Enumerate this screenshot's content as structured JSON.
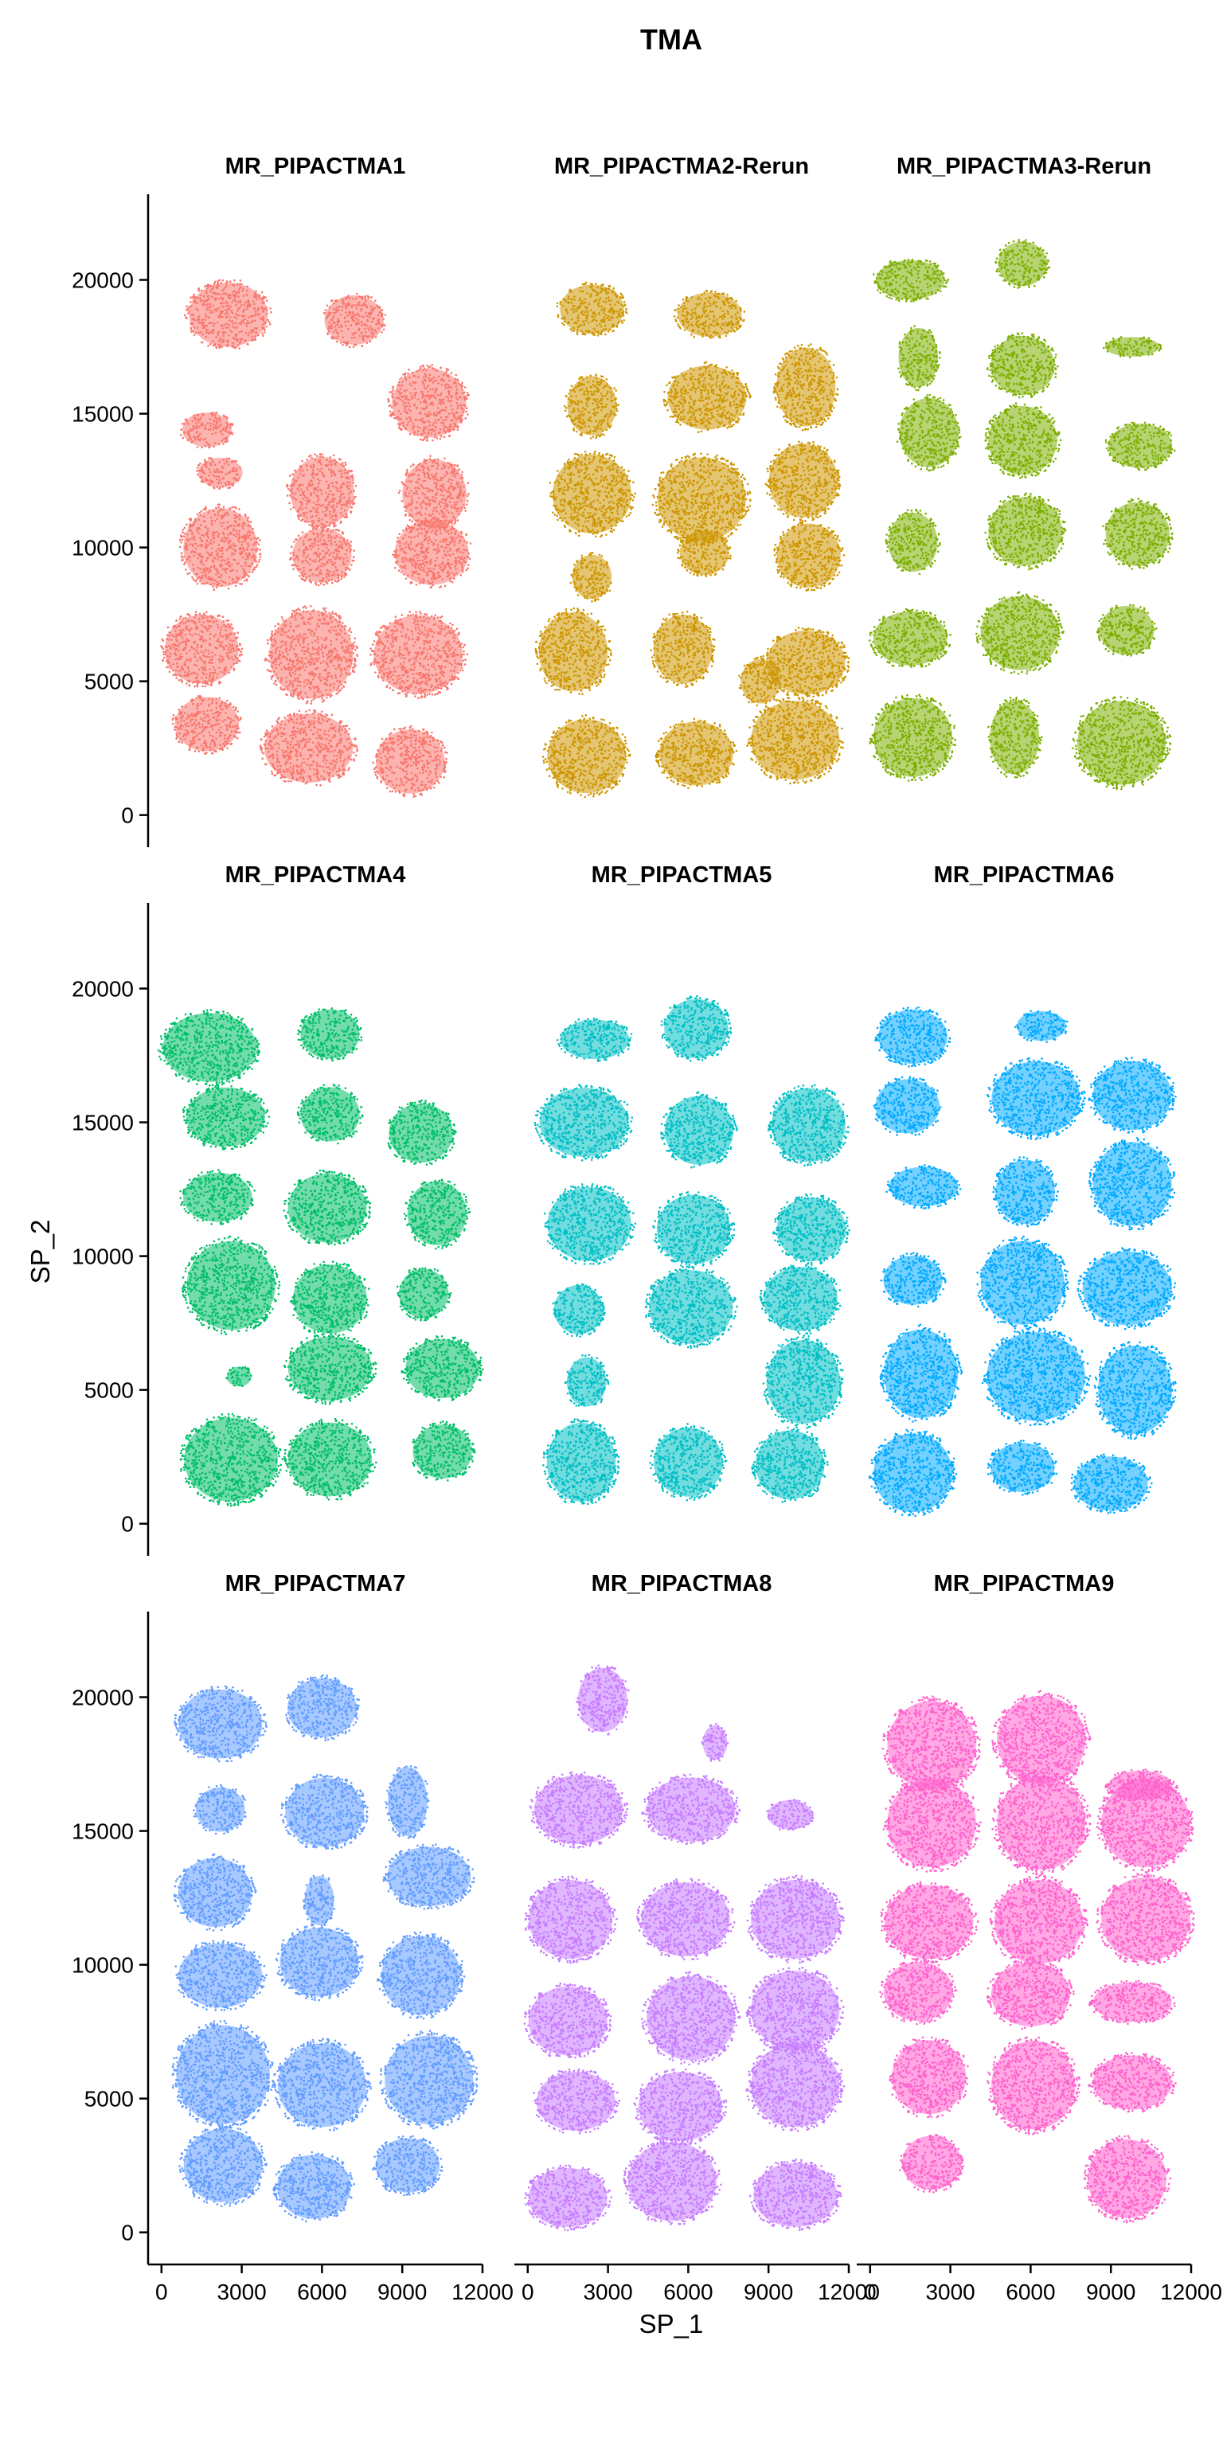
{
  "chart_data": {
    "type": "scatter",
    "title": "TMA",
    "xlabel": "SP_1",
    "ylabel": "SP_2",
    "xlim": [
      -500,
      12000
    ],
    "ylim": [
      -1200,
      23200
    ],
    "x_ticks": [
      0,
      3000,
      6000,
      9000,
      12000
    ],
    "y_ticks": [
      0,
      5000,
      10000,
      15000,
      20000
    ],
    "x_tick_labels": [
      "0",
      "3000",
      "6000",
      "9000",
      "12000"
    ],
    "y_tick_labels": [
      "0",
      "5000",
      "10000",
      "15000",
      "20000"
    ],
    "grid": false,
    "legend": "none",
    "panels": [
      {
        "name": "MR_PIPACTMA1",
        "color": "#F8766D",
        "cores": [
          [
            2500,
            18700,
            1600,
            1300
          ],
          [
            7200,
            18500,
            1200,
            1000
          ],
          [
            10000,
            15400,
            1500,
            1400
          ],
          [
            1700,
            14400,
            1000,
            700
          ],
          [
            2200,
            12800,
            900,
            600
          ],
          [
            6000,
            12100,
            1300,
            1400
          ],
          [
            10200,
            12000,
            1300,
            1400
          ],
          [
            2200,
            10000,
            1500,
            1600
          ],
          [
            6000,
            9700,
            1200,
            1100
          ],
          [
            10100,
            9800,
            1500,
            1300
          ],
          [
            1500,
            6200,
            1500,
            1400
          ],
          [
            5600,
            6000,
            1700,
            1800
          ],
          [
            9600,
            6000,
            1800,
            1600
          ],
          [
            1700,
            3400,
            1300,
            1100
          ],
          [
            5500,
            2500,
            1800,
            1400
          ],
          [
            9300,
            2000,
            1400,
            1300
          ]
        ]
      },
      {
        "name": "MR_PIPACTMA2-Rerun",
        "color": "#CD9600",
        "cores": [
          [
            2400,
            18900,
            1300,
            1000
          ],
          [
            6800,
            18700,
            1300,
            900
          ],
          [
            2400,
            15300,
            1000,
            1200
          ],
          [
            6700,
            15600,
            1600,
            1300
          ],
          [
            10400,
            16000,
            1200,
            1600
          ],
          [
            2400,
            12000,
            1600,
            1600
          ],
          [
            6500,
            11800,
            1800,
            1700
          ],
          [
            10300,
            12500,
            1400,
            1500
          ],
          [
            2400,
            8900,
            800,
            900
          ],
          [
            6600,
            9800,
            1000,
            900
          ],
          [
            10500,
            9700,
            1300,
            1300
          ],
          [
            1700,
            6100,
            1400,
            1600
          ],
          [
            5800,
            6200,
            1200,
            1400
          ],
          [
            8700,
            5000,
            800,
            900
          ],
          [
            10400,
            5700,
            1600,
            1300
          ],
          [
            2200,
            2200,
            1600,
            1500
          ],
          [
            6300,
            2300,
            1500,
            1300
          ],
          [
            10000,
            2800,
            1800,
            1600
          ]
        ]
      },
      {
        "name": "MR_PIPACTMA3-Rerun",
        "color": "#7CAE00",
        "cores": [
          [
            1500,
            20000,
            1400,
            800
          ],
          [
            5700,
            20600,
            1000,
            900
          ],
          [
            1800,
            17100,
            800,
            1200
          ],
          [
            5700,
            16800,
            1300,
            1200
          ],
          [
            9800,
            17500,
            1100,
            400
          ],
          [
            2200,
            14300,
            1200,
            1400
          ],
          [
            5700,
            14000,
            1400,
            1400
          ],
          [
            10100,
            13800,
            1300,
            900
          ],
          [
            1600,
            10200,
            1000,
            1200
          ],
          [
            5800,
            10600,
            1500,
            1400
          ],
          [
            10000,
            10500,
            1300,
            1300
          ],
          [
            1500,
            6600,
            1500,
            1100
          ],
          [
            5600,
            6800,
            1600,
            1500
          ],
          [
            9600,
            6900,
            1100,
            1000
          ],
          [
            1600,
            2900,
            1600,
            1600
          ],
          [
            5400,
            2900,
            1000,
            1500
          ],
          [
            9400,
            2700,
            1800,
            1700
          ]
        ]
      },
      {
        "name": "MR_PIPACTMA4",
        "color": "#00BE67",
        "cores": [
          [
            1800,
            17800,
            1900,
            1400
          ],
          [
            6300,
            18300,
            1200,
            1000
          ],
          [
            2400,
            15200,
            1600,
            1200
          ],
          [
            6300,
            15300,
            1200,
            1100
          ],
          [
            9700,
            14600,
            1300,
            1200
          ],
          [
            2100,
            12200,
            1400,
            1000
          ],
          [
            6200,
            11800,
            1600,
            1400
          ],
          [
            10300,
            11600,
            1200,
            1300
          ],
          [
            2600,
            8900,
            1800,
            1800
          ],
          [
            6300,
            8400,
            1500,
            1400
          ],
          [
            9800,
            8600,
            1000,
            1000
          ],
          [
            2900,
            5500,
            500,
            400
          ],
          [
            6300,
            5800,
            1700,
            1300
          ],
          [
            10500,
            5800,
            1500,
            1200
          ],
          [
            2600,
            2400,
            1900,
            1700
          ],
          [
            6300,
            2400,
            1700,
            1500
          ],
          [
            10500,
            2700,
            1200,
            1100
          ]
        ]
      },
      {
        "name": "MR_PIPACTMA5",
        "color": "#00BFC4",
        "cores": [
          [
            2500,
            18100,
            1400,
            800
          ],
          [
            6300,
            18500,
            1300,
            1200
          ],
          [
            2100,
            15000,
            1800,
            1400
          ],
          [
            6400,
            14700,
            1400,
            1400
          ],
          [
            10500,
            14900,
            1500,
            1500
          ],
          [
            2300,
            11200,
            1700,
            1500
          ],
          [
            6200,
            11000,
            1500,
            1400
          ],
          [
            10600,
            11000,
            1400,
            1300
          ],
          [
            1900,
            8000,
            1000,
            1000
          ],
          [
            6100,
            8100,
            1700,
            1500
          ],
          [
            10200,
            8400,
            1500,
            1300
          ],
          [
            2200,
            5300,
            800,
            1000
          ],
          [
            10300,
            5300,
            1500,
            1700
          ],
          [
            2000,
            2300,
            1400,
            1600
          ],
          [
            6000,
            2300,
            1400,
            1400
          ],
          [
            9800,
            2200,
            1400,
            1400
          ]
        ]
      },
      {
        "name": "MR_PIPACTMA6",
        "color": "#00A9FF",
        "cores": [
          [
            1600,
            18200,
            1400,
            1100
          ],
          [
            6400,
            18600,
            1000,
            600
          ],
          [
            1400,
            15600,
            1300,
            1100
          ],
          [
            6200,
            15900,
            1800,
            1500
          ],
          [
            9800,
            16000,
            1600,
            1400
          ],
          [
            2000,
            12600,
            1400,
            800
          ],
          [
            5800,
            12400,
            1200,
            1300
          ],
          [
            9800,
            12700,
            1600,
            1700
          ],
          [
            1600,
            9100,
            1200,
            1000
          ],
          [
            5700,
            9000,
            1700,
            1700
          ],
          [
            9600,
            8800,
            1800,
            1500
          ],
          [
            1900,
            5600,
            1500,
            1800
          ],
          [
            6200,
            5500,
            2000,
            1800
          ],
          [
            9900,
            5000,
            1500,
            1800
          ],
          [
            1600,
            1900,
            1600,
            1600
          ],
          [
            5700,
            2100,
            1300,
            1000
          ],
          [
            9000,
            1500,
            1500,
            1100
          ]
        ]
      },
      {
        "name": "MR_PIPACTMA7",
        "color": "#619CFF",
        "cores": [
          [
            2200,
            19000,
            1700,
            1400
          ],
          [
            6000,
            19600,
            1400,
            1200
          ],
          [
            2200,
            15800,
            1000,
            900
          ],
          [
            6100,
            15700,
            1600,
            1400
          ],
          [
            9200,
            16100,
            800,
            1400
          ],
          [
            2000,
            12700,
            1500,
            1400
          ],
          [
            5900,
            12400,
            600,
            1000
          ],
          [
            10000,
            13300,
            1700,
            1200
          ],
          [
            2200,
            9600,
            1700,
            1300
          ],
          [
            5900,
            10100,
            1600,
            1400
          ],
          [
            9700,
            9600,
            1600,
            1600
          ],
          [
            2300,
            5900,
            1900,
            2000
          ],
          [
            6000,
            5500,
            1800,
            1700
          ],
          [
            10000,
            5700,
            1800,
            1800
          ],
          [
            2300,
            2500,
            1600,
            1500
          ],
          [
            5700,
            1700,
            1500,
            1300
          ],
          [
            9200,
            2500,
            1300,
            1100
          ]
        ]
      },
      {
        "name": "MR_PIPACTMA8",
        "color": "#C77CFF",
        "cores": [
          [
            2800,
            19900,
            1000,
            1300
          ],
          [
            7000,
            18300,
            500,
            700
          ],
          [
            1900,
            15800,
            1800,
            1400
          ],
          [
            6100,
            15800,
            1800,
            1300
          ],
          [
            9800,
            15600,
            900,
            600
          ],
          [
            1600,
            11700,
            1700,
            1600
          ],
          [
            5900,
            11700,
            1800,
            1500
          ],
          [
            10000,
            11700,
            1800,
            1600
          ],
          [
            1500,
            7900,
            1600,
            1400
          ],
          [
            6100,
            8000,
            1800,
            1700
          ],
          [
            10000,
            8300,
            1800,
            1600
          ],
          [
            1800,
            4900,
            1600,
            1200
          ],
          [
            5700,
            4700,
            1700,
            1400
          ],
          [
            10000,
            5500,
            1800,
            1700
          ],
          [
            1500,
            1300,
            1600,
            1200
          ],
          [
            5400,
            1900,
            1800,
            1600
          ],
          [
            10000,
            1400,
            1700,
            1300
          ]
        ]
      },
      {
        "name": "MR_PIPACTMA9",
        "color": "#FF61CC",
        "cores": [
          [
            2300,
            18200,
            1800,
            1800
          ],
          [
            6400,
            18400,
            1800,
            1800
          ],
          [
            10100,
            16700,
            1300,
            600
          ],
          [
            2300,
            15300,
            1800,
            1800
          ],
          [
            6400,
            15300,
            1800,
            1900
          ],
          [
            10300,
            15300,
            1800,
            1800
          ],
          [
            2200,
            11600,
            1800,
            1500
          ],
          [
            6300,
            11600,
            1800,
            1700
          ],
          [
            10300,
            11700,
            1800,
            1700
          ],
          [
            1800,
            9000,
            1400,
            1200
          ],
          [
            6000,
            8900,
            1600,
            1300
          ],
          [
            9800,
            8600,
            1600,
            800
          ],
          [
            2200,
            5800,
            1500,
            1500
          ],
          [
            6100,
            5500,
            1700,
            1800
          ],
          [
            9800,
            5600,
            1600,
            1100
          ],
          [
            2300,
            2600,
            1200,
            1100
          ],
          [
            9600,
            2000,
            1600,
            1600
          ]
        ]
      }
    ]
  }
}
